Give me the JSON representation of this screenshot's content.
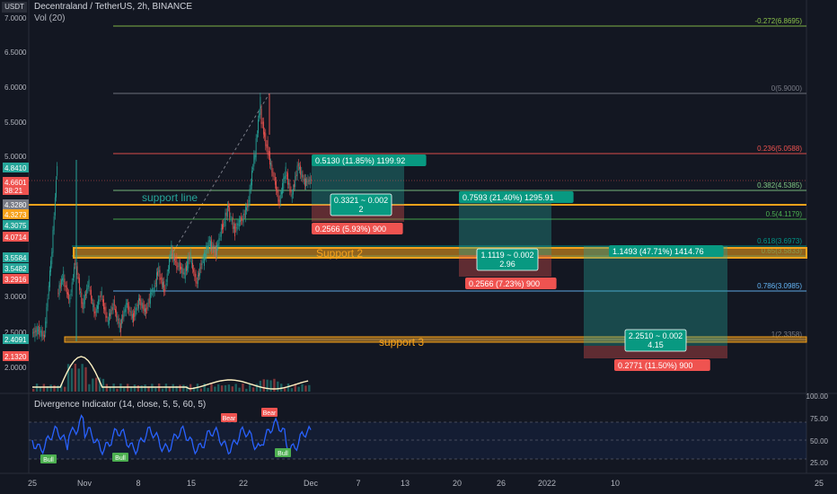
{
  "header": {
    "title": "Decentraland / TetherUS, 2h, BINANCE",
    "volume": "Vol (20)",
    "unit_badge": "USDT"
  },
  "indicator": {
    "title": "Divergence Indicator (14, close, 5, 5, 60, 5)",
    "scale": [
      "100.00",
      "75.00",
      "50.00",
      "25.00"
    ],
    "signals": [
      {
        "label": "Bull",
        "x": 54,
        "y": 511
      },
      {
        "label": "Bull",
        "x": 134,
        "y": 509
      },
      {
        "label": "Bear",
        "x": 255,
        "y": 465
      },
      {
        "label": "Bear",
        "x": 300,
        "y": 459
      },
      {
        "label": "Bull",
        "x": 315,
        "y": 504
      }
    ]
  },
  "price_axis": {
    "ticks": [
      "7.0000",
      "6.5000",
      "6.0000",
      "5.5000",
      "5.0000",
      "3.0000",
      "2.5000",
      "2.0000"
    ],
    "tags": [
      {
        "text": "4.8410",
        "color": "#26a69a"
      },
      {
        "text": "4.6601",
        "color": "#ef5350"
      },
      {
        "text": "38:21",
        "color": "#ef5350"
      },
      {
        "text": "4.3280",
        "color": "#787b86"
      },
      {
        "text": "4.3273",
        "color": "#f7a21b"
      },
      {
        "text": "4.3075",
        "color": "#26a69a"
      },
      {
        "text": "4.0714",
        "color": "#ef5350"
      },
      {
        "text": "3.5584",
        "color": "#26a69a"
      },
      {
        "text": "3.5482",
        "color": "#26a69a"
      },
      {
        "text": "3.2916",
        "color": "#ef5350"
      },
      {
        "text": "2.4091",
        "color": "#26a69a"
      },
      {
        "text": "2.1320",
        "color": "#ef5350"
      }
    ]
  },
  "time_axis": [
    "25",
    "Nov",
    "8",
    "15",
    "22",
    "Dec",
    "7",
    "13",
    "20",
    "26",
    "2022",
    "10",
    "25"
  ],
  "fib_levels": [
    {
      "label": "-0.272(6.8695)",
      "color": "#8bc34a"
    },
    {
      "label": "0(5.9000)",
      "color": "#787b86"
    },
    {
      "label": "0.236(5.0588)",
      "color": "#ef5350"
    },
    {
      "label": "0.382(4.5385)",
      "color": "#81c784"
    },
    {
      "label": "0.5(4.1179)",
      "color": "#4caf50"
    },
    {
      "label": "0.618(3.6973)",
      "color": "#009688"
    },
    {
      "label": "0.65(3.5833)",
      "color": "#009688"
    },
    {
      "label": "0.786(3.0985)",
      "color": "#64b5f6"
    },
    {
      "label": "1(2.3358)",
      "color": "#787b86"
    }
  ],
  "zones": {
    "support_line": "support line",
    "support_2": "Support 2",
    "support_3": "support 3"
  },
  "positions": [
    {
      "target": "0.5130 (11.85%) 1199.92",
      "ratio": "0.3321 ~ 0.002",
      "ratio2": "2",
      "stop": "0.2566 (5.93%) 900"
    },
    {
      "target": "0.7593 (21.40%) 1295.91",
      "ratio": "1.1119 ~ 0.002",
      "ratio2": "2.96",
      "stop": "0.2566 (7.23%) 900"
    },
    {
      "target": "1.1493 (47.71%) 1414.76",
      "ratio": "2.2510 ~ 0.002",
      "ratio2": "4.15",
      "stop": "0.2771 (11.50%) 900"
    }
  ],
  "colors": {
    "up": "#26a69a",
    "down": "#ef5350",
    "support": "#f7a21b",
    "rsi": "#2962ff"
  },
  "chart_data": {
    "type": "candlestick",
    "title": "Decentraland / TetherUS, 2h, BINANCE",
    "ylim": [
      1.6,
      7.0
    ],
    "price_path": [
      [
        2.45,
        2.5
      ],
      [
        2.5,
        2.4
      ],
      [
        2.45,
        3.5
      ],
      [
        3.4,
        4.9
      ],
      [
        3.0,
        3.3
      ],
      [
        3.2,
        2.9
      ],
      [
        2.95,
        3.6
      ],
      [
        3.4,
        2.8
      ],
      [
        2.85,
        3.2
      ],
      [
        3.1,
        2.7
      ],
      [
        2.75,
        3.05
      ],
      [
        2.95,
        2.6
      ],
      [
        2.65,
        2.9
      ],
      [
        2.8,
        2.5
      ],
      [
        2.6,
        2.9
      ],
      [
        2.85,
        2.65
      ],
      [
        2.7,
        2.95
      ],
      [
        2.9,
        2.75
      ],
      [
        2.78,
        3.1
      ],
      [
        3.0,
        3.4
      ],
      [
        3.3,
        3.05
      ],
      [
        3.1,
        3.7
      ],
      [
        3.6,
        3.4
      ],
      [
        3.45,
        3.3
      ],
      [
        3.3,
        3.6
      ],
      [
        3.5,
        3.15
      ],
      [
        3.2,
        3.55
      ],
      [
        3.5,
        3.8
      ],
      [
        3.75,
        3.6
      ],
      [
        3.62,
        4.0
      ],
      [
        3.95,
        4.3
      ],
      [
        4.2,
        3.9
      ],
      [
        3.95,
        4.1
      ],
      [
        4.05,
        4.3
      ],
      [
        4.25,
        5.0
      ],
      [
        4.9,
        5.8
      ],
      [
        5.6,
        5.1
      ],
      [
        5.15,
        4.7
      ],
      [
        4.75,
        4.3
      ],
      [
        4.35,
        4.8
      ],
      [
        4.75,
        4.4
      ],
      [
        4.45,
        4.9
      ],
      [
        4.85,
        4.6
      ],
      [
        4.62,
        4.66
      ]
    ]
  }
}
